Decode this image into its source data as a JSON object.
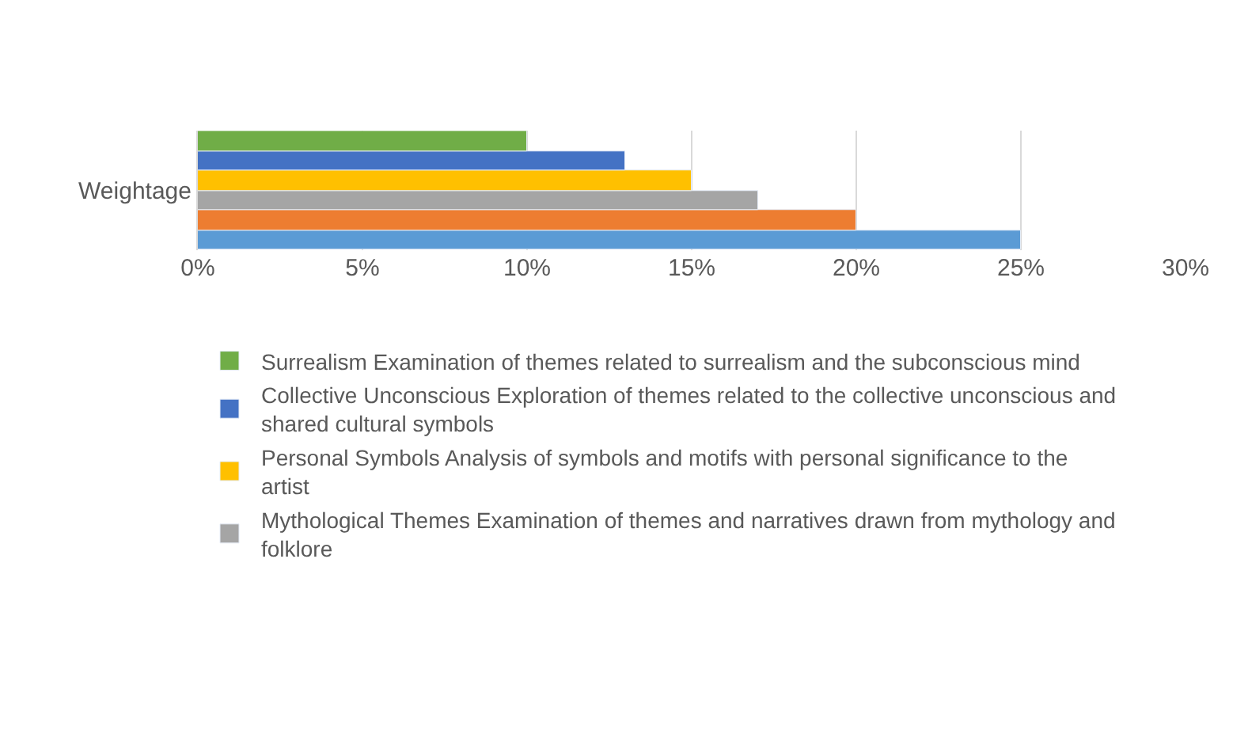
{
  "chart_data": {
    "type": "bar",
    "orientation": "horizontal",
    "categories": [
      "Weightage"
    ],
    "series": [
      {
        "name": "Surrealism Examination of themes related to surrealism and the subconscious mind",
        "color": "#70ad47",
        "values": [
          10
        ]
      },
      {
        "name": "Collective Unconscious Exploration of themes related to the collective unconscious and shared cultural symbols",
        "color": "#4472c4",
        "values": [
          13
        ]
      },
      {
        "name": "Personal Symbols Analysis of symbols and motifs with personal significance to the artist",
        "color": "#ffc000",
        "values": [
          15
        ]
      },
      {
        "name": "Mythological Themes Examination of themes and narratives drawn from mythology and folklore",
        "color": "#a5a5a5",
        "values": [
          17
        ]
      },
      {
        "color": "#ed7d31",
        "values": [
          20
        ]
      },
      {
        "color": "#5b9bd5",
        "values": [
          25
        ]
      }
    ],
    "xlim": [
      0,
      30
    ],
    "xticks": [
      {
        "value": 0,
        "label": "0%"
      },
      {
        "value": 5,
        "label": "5%"
      },
      {
        "value": 10,
        "label": "10%"
      },
      {
        "value": 15,
        "label": "15%"
      },
      {
        "value": 20,
        "label": "20%"
      },
      {
        "value": 25,
        "label": "25%"
      },
      {
        "value": 30,
        "label": "30%"
      }
    ],
    "grid": "x",
    "legend": "bottom"
  }
}
